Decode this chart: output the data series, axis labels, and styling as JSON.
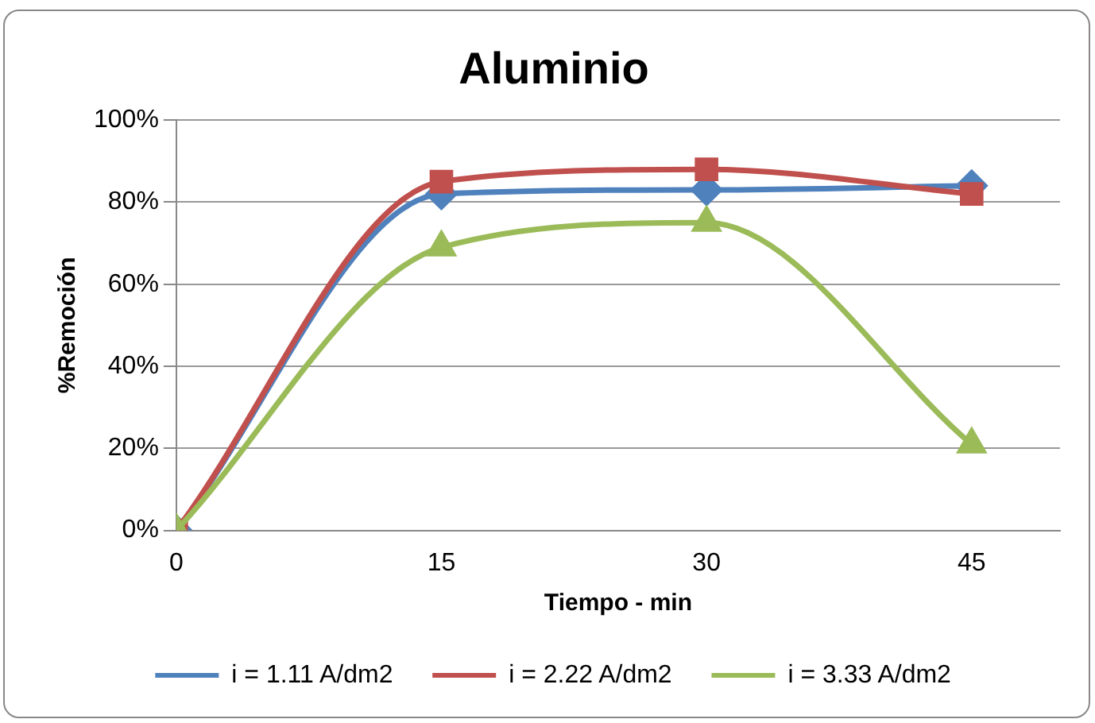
{
  "chart_data": {
    "type": "line",
    "title": "Aluminio",
    "xlabel": "Tiempo - min",
    "ylabel": "%Remoción",
    "x": [
      0,
      15,
      30,
      45
    ],
    "series": [
      {
        "name": "i = 1.11 A/dm2",
        "color": "#4f81bd",
        "marker": "diamond",
        "values": [
          0,
          82,
          83,
          84
        ]
      },
      {
        "name": "i = 2.22 A/dm2",
        "color": "#c0504d",
        "marker": "square",
        "values": [
          0,
          85,
          88,
          82
        ]
      },
      {
        "name": "i = 3.33 A/dm2",
        "color": "#9bbb59",
        "marker": "triangle",
        "values": [
          0,
          69,
          75,
          21
        ]
      }
    ],
    "xlim": [
      0,
      50
    ],
    "xticks": [
      0,
      15,
      30,
      45
    ],
    "ylim": [
      0,
      100
    ],
    "yticks": [
      {
        "value": 0,
        "label": "0%"
      },
      {
        "value": 20,
        "label": "20%"
      },
      {
        "value": 40,
        "label": "40%"
      },
      {
        "value": 60,
        "label": "60%"
      },
      {
        "value": 80,
        "label": "80%"
      },
      {
        "value": 100,
        "label": "100%"
      }
    ],
    "grid": "y",
    "legend": "bottom"
  }
}
